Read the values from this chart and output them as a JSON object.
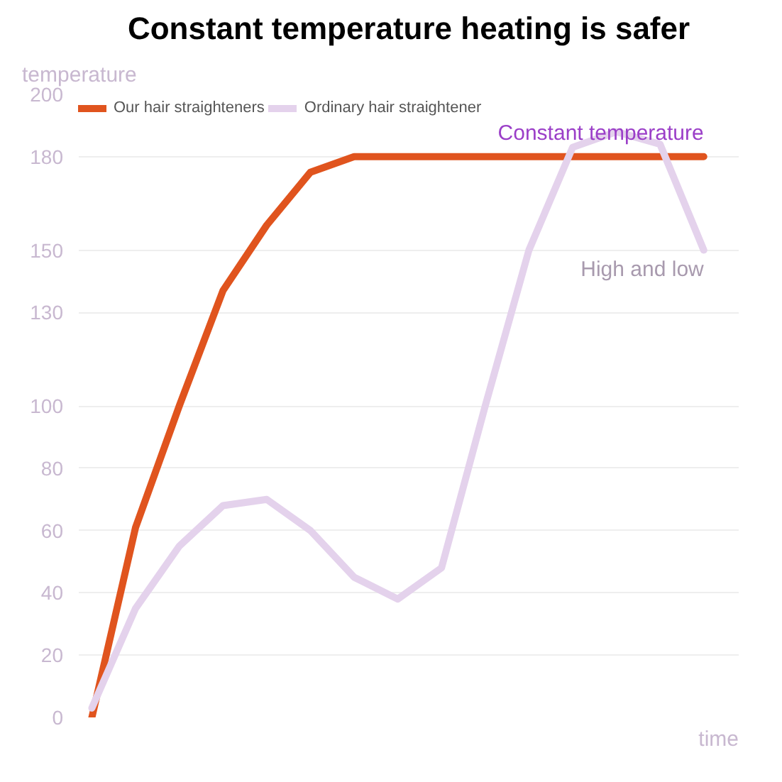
{
  "chart_data": {
    "type": "line",
    "title": "Constant temperature heating is safer",
    "ylabel": "temperature",
    "xlabel": "time",
    "categories": [
      null,
      null,
      null,
      null,
      null,
      null,
      null,
      null,
      null,
      null,
      null,
      null,
      null,
      null,
      null
    ],
    "ylim": [
      0,
      200
    ],
    "yticks": [
      0,
      20,
      40,
      60,
      80,
      100,
      130,
      150,
      180,
      200
    ],
    "tick_labels": "y",
    "grid": "y",
    "legend": "top left",
    "line_style": "solid",
    "marker": "none",
    "series": [
      {
        "name": "Our hair straighteners",
        "color": "#e0541e",
        "values": [
          0,
          61,
          100,
          137,
          158,
          175,
          180,
          180,
          180,
          180,
          180,
          180,
          180,
          180,
          180
        ]
      },
      {
        "name": "Ordinary hair straightener",
        "color": "#e4d2ec",
        "values": [
          3,
          35,
          55,
          68,
          70,
          60,
          45,
          38,
          48,
          100,
          150,
          183,
          188,
          184,
          150
        ]
      }
    ],
    "annotations": [
      "Constant temperature",
      "High and low"
    ]
  }
}
